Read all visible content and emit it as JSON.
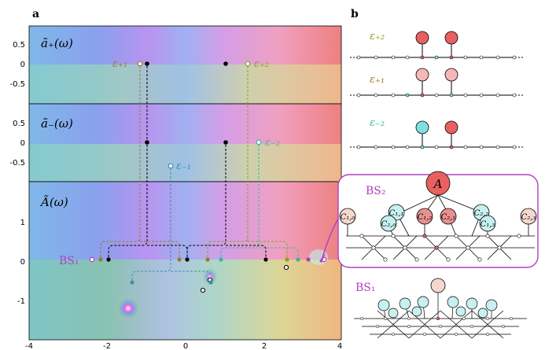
{
  "panel_a": {
    "panel_label": "a",
    "subpanels": [
      {
        "label": "ã₊(ω)",
        "yticks": [
          "0.5",
          "0",
          "-0.5"
        ]
      },
      {
        "label": "ã₋(ω)",
        "yticks": [
          "0.5",
          "0",
          "-0.5"
        ]
      },
      {
        "label": "Ã(ω)",
        "yticks": [
          "1",
          "0",
          "-1"
        ]
      }
    ],
    "xticks": [
      "-4",
      "-2",
      "0",
      "2",
      "4"
    ],
    "eps_labels": {
      "plus1": "ε₊₁",
      "plus2": "ε₊₂",
      "minus1": "ε₋₁",
      "minus2": "ε₋₂"
    },
    "bs1_label": "BS₁"
  },
  "panel_b": {
    "panel_label": "b",
    "eps_labels": [
      "ε₊₂",
      "ε₊₁",
      "ε₋₂"
    ],
    "bs2_label": "BS₂",
    "bs1_label": "BS₁",
    "node_A": "A",
    "node_labels": [
      "C₁,₀",
      "C₁,₁",
      "C₂,₀",
      "C₁,₂",
      "C₂,₁",
      "C₂,₂",
      "C₁,₃",
      "C₂,₃"
    ]
  },
  "colors": {
    "eps_plus": "#9a7a2a",
    "eps_plus2": "#8aa020",
    "eps_minus1": "#3a8fb0",
    "eps_minus2": "#30b8a0",
    "bs_purple": "#b040c0",
    "red_node": "#e86060",
    "pink_node": "#f4b8b8",
    "cyan_node": "#80e0e0"
  }
}
